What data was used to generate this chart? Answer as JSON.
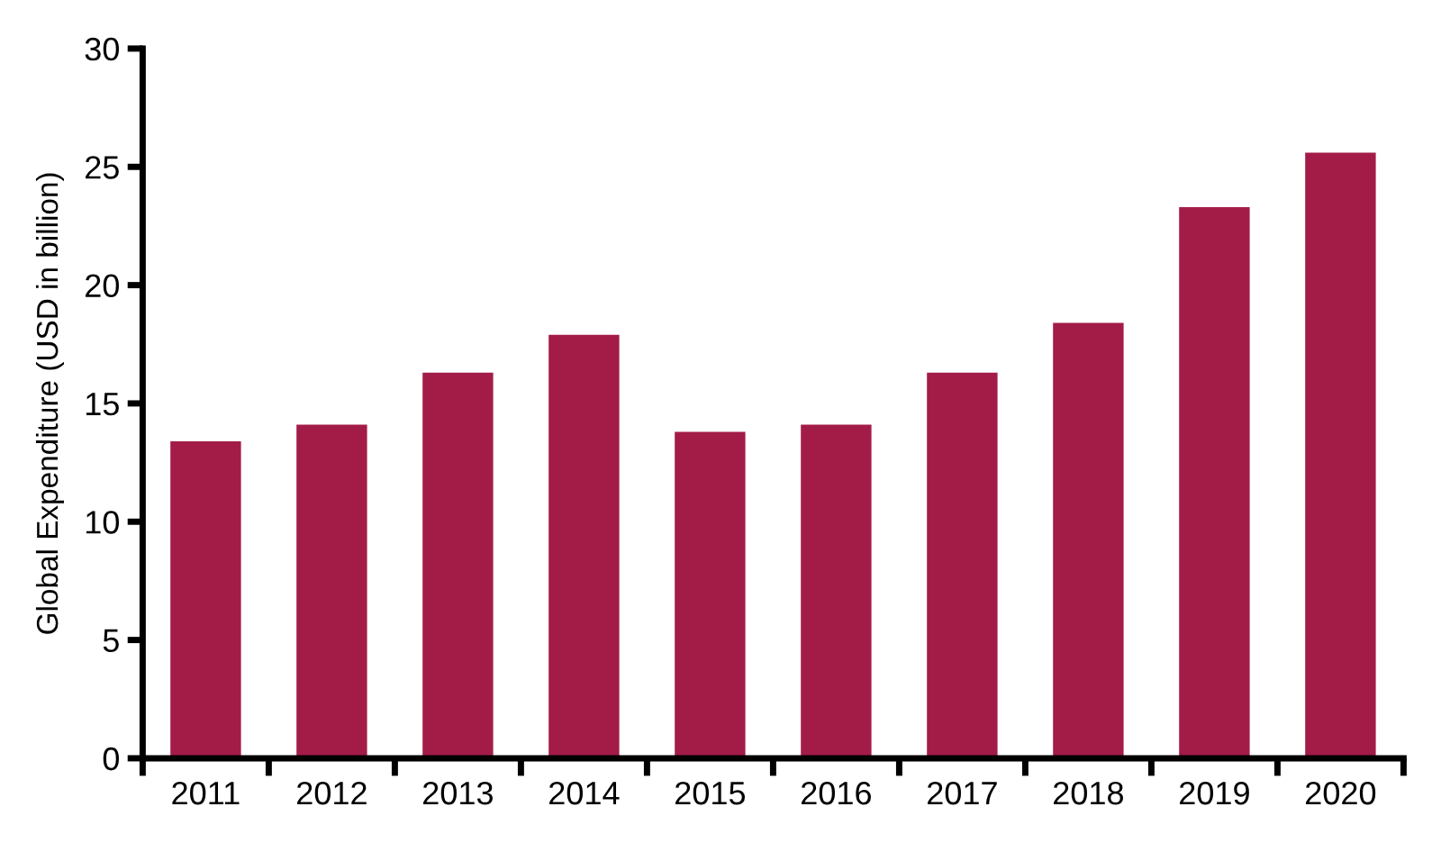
{
  "chart_data": {
    "type": "bar",
    "ylabel": "Global Expenditure (USD in billion)",
    "categories": [
      "2011",
      "2012",
      "2013",
      "2014",
      "2015",
      "2016",
      "2017",
      "2018",
      "2019",
      "2020"
    ],
    "values": [
      13.4,
      14.1,
      16.3,
      17.9,
      13.8,
      14.1,
      16.3,
      18.4,
      23.3,
      25.6
    ],
    "color": "#a31c48",
    "ylim": [
      0,
      30
    ],
    "yticks": [
      0,
      5,
      10,
      15,
      20,
      25,
      30
    ]
  }
}
